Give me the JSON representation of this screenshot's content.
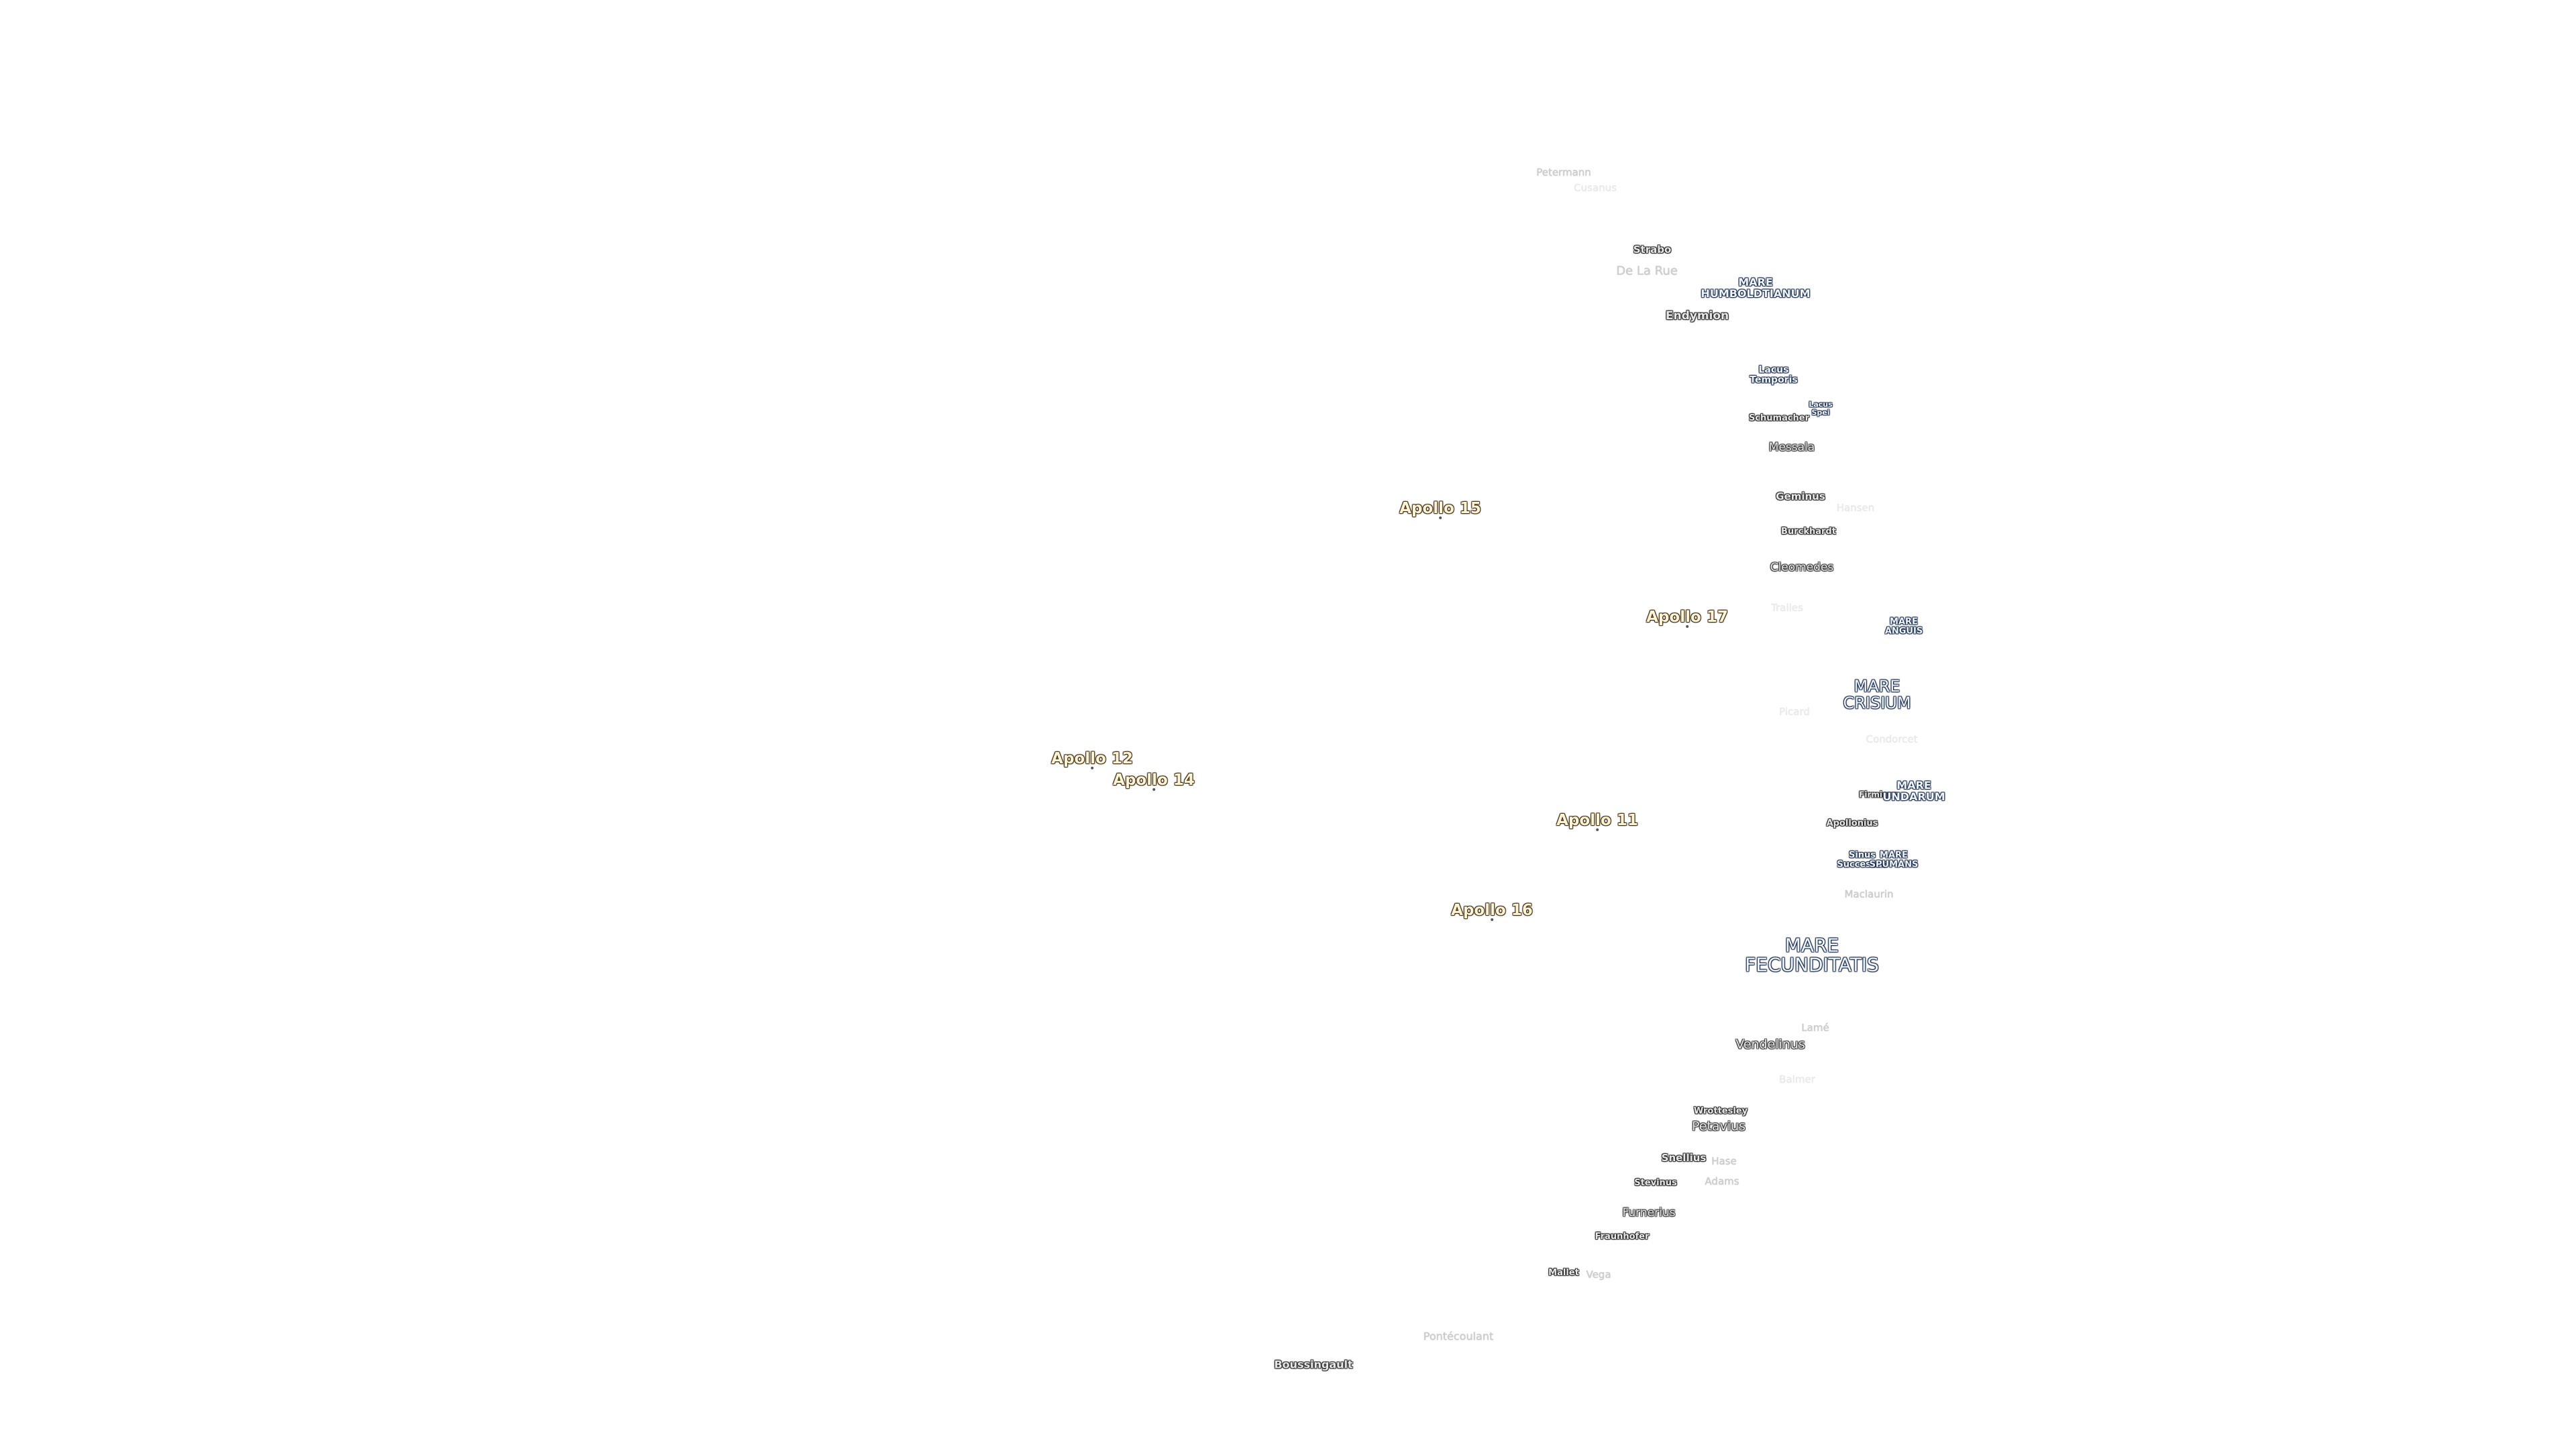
{
  "labels": [
    "Petermann",
    "Cusanus",
    "Strabo",
    "De La Rue",
    "MARE\nHUMBOLDTIANUM",
    "Endymion",
    "Lacus\nTemporis",
    "Lacus\nSpei",
    "Schumacher",
    "Messala",
    "Apollo 15",
    "Geminus",
    "Hansen",
    "Burckhardt",
    "Cleomedes",
    "Tralles",
    "Apollo 17",
    "MARE\nANGUIS",
    "Picard",
    "MARE\nCRISIUM",
    "Condorcet",
    "Apollo 12",
    "Apollo 14",
    "Firmicus",
    "MARE\nUNDARUM",
    "Apollo 11",
    "Apollonius",
    "Sinus\nSuccessus",
    "MARE\nSPUMANS",
    "Maclaurin",
    "Apollo 16",
    "MARE\nFECUNDITATIS",
    "Lamé",
    "Vendelinus",
    "Balmer",
    "Wrottesley",
    "Petavius",
    "Snellius",
    "Hase",
    "Stevinus",
    "Adams",
    "Furnerius",
    "Fraunhofer",
    "Mallet",
    "Vega",
    "Pontécoulant",
    "Boussingault"
  ]
}
